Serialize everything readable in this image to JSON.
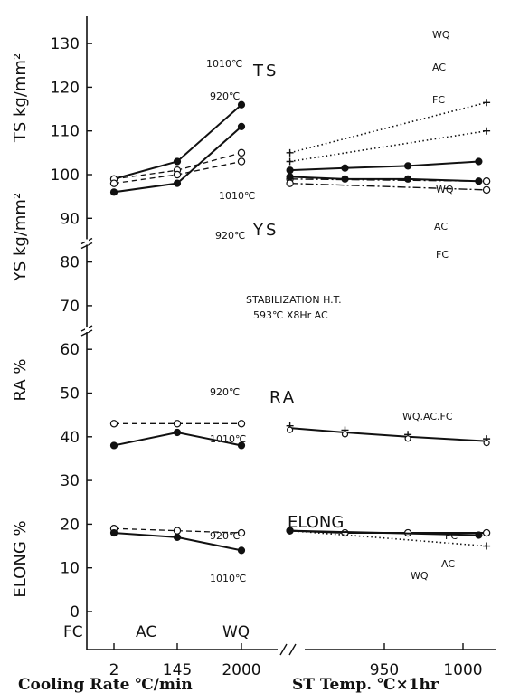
{
  "chart_data": {
    "type": "line",
    "y_ticks": [
      0,
      10,
      20,
      30,
      40,
      50,
      60,
      70,
      80,
      90,
      100,
      110,
      120,
      130
    ],
    "y_tick_labels": [
      "0",
      "10",
      "20",
      "30",
      "40",
      "50",
      "60",
      "70",
      "80",
      "90",
      "100",
      "110",
      "120",
      "130"
    ],
    "y_labels": {
      "ts": "TS kg/mm²",
      "ys": "YS kg/mm²",
      "ra": "RA %",
      "elong": "ELONG %"
    },
    "left_x_categories": [
      "FC",
      "AC",
      "WQ"
    ],
    "left_x_ticks": [
      "2",
      "145",
      "2000"
    ],
    "left_x_label": "Cooling Rate ℃/min",
    "right_x_ticks": [
      "950",
      "1000"
    ],
    "right_x_label": "ST Temp. ℃×1hr",
    "right_x_range": [
      880,
      1020
    ],
    "annotation": [
      "STABILIZATION H.T.",
      "593℃ X8Hr AC"
    ],
    "panels": [
      {
        "label": "TS",
        "left_series": [
          {
            "name": "1010℃",
            "style": "solid",
            "marker": "filled",
            "values": [
              99,
              103,
              116
            ]
          },
          {
            "name": "920℃",
            "style": "dashed",
            "marker": "open",
            "values": [
              99,
              101,
              105
            ]
          }
        ],
        "right_series": [
          {
            "name": "WQ",
            "style": "dotted",
            "marker": "plus",
            "x": [
              890,
              1015
            ],
            "values": [
              105,
              116.5
            ]
          },
          {
            "name": "AC",
            "style": "solid",
            "marker": "filled",
            "x": [
              890,
              925,
              965,
              1010
            ],
            "values": [
              101,
              101.5,
              102,
              103
            ]
          },
          {
            "name": "FC",
            "style": "dashdot",
            "marker": "open",
            "x": [
              890,
              1015
            ],
            "values": [
              99,
              98.5
            ]
          }
        ]
      },
      {
        "label": "YS",
        "left_series": [
          {
            "name": "1010℃",
            "style": "solid",
            "marker": "filled",
            "values": [
              96,
              98,
              111
            ]
          },
          {
            "name": "920℃",
            "style": "dashed",
            "marker": "open",
            "values": [
              98,
              100,
              103
            ]
          }
        ],
        "right_series": [
          {
            "name": "WQ",
            "style": "dotted",
            "marker": "plus",
            "x": [
              890,
              1015
            ],
            "values": [
              103,
              110
            ]
          },
          {
            "name": "AC",
            "style": "solid",
            "marker": "filled",
            "x": [
              890,
              925,
              965,
              1010
            ],
            "values": [
              99.5,
              99,
              99,
              98.5
            ]
          },
          {
            "name": "FC",
            "style": "dashdot",
            "marker": "open",
            "x": [
              890,
              1015
            ],
            "values": [
              98,
              96.5
            ]
          }
        ]
      },
      {
        "label": "RA",
        "left_series": [
          {
            "name": "920℃",
            "style": "dashed",
            "marker": "open",
            "values": [
              43,
              43,
              43
            ]
          },
          {
            "name": "1010℃",
            "style": "solid",
            "marker": "filled",
            "values": [
              38,
              41,
              38
            ]
          }
        ],
        "right_series": [
          {
            "name": "WQ.AC.FC",
            "style": "solid",
            "marker": "mixed",
            "x": [
              890,
              925,
              965,
              1015
            ],
            "values": [
              42,
              41,
              40,
              39
            ]
          }
        ]
      },
      {
        "label": "ELONG",
        "left_series": [
          {
            "name": "920℃",
            "style": "dashed",
            "marker": "open",
            "values": [
              19,
              18.5,
              18
            ]
          },
          {
            "name": "1010℃",
            "style": "solid",
            "marker": "filled",
            "values": [
              18,
              17,
              14
            ]
          }
        ],
        "right_series": [
          {
            "name": "FC",
            "style": "solid",
            "marker": "open",
            "x": [
              890,
              925,
              965,
              1015
            ],
            "values": [
              18.5,
              18,
              18,
              18
            ]
          },
          {
            "name": "AC",
            "style": "solid",
            "marker": "filled",
            "x": [
              890,
              1010
            ],
            "values": [
              18.5,
              17.5
            ]
          },
          {
            "name": "WQ",
            "style": "dotted",
            "marker": "plus",
            "x": [
              890,
              1015
            ],
            "values": [
              18.5,
              15
            ]
          }
        ]
      }
    ]
  }
}
